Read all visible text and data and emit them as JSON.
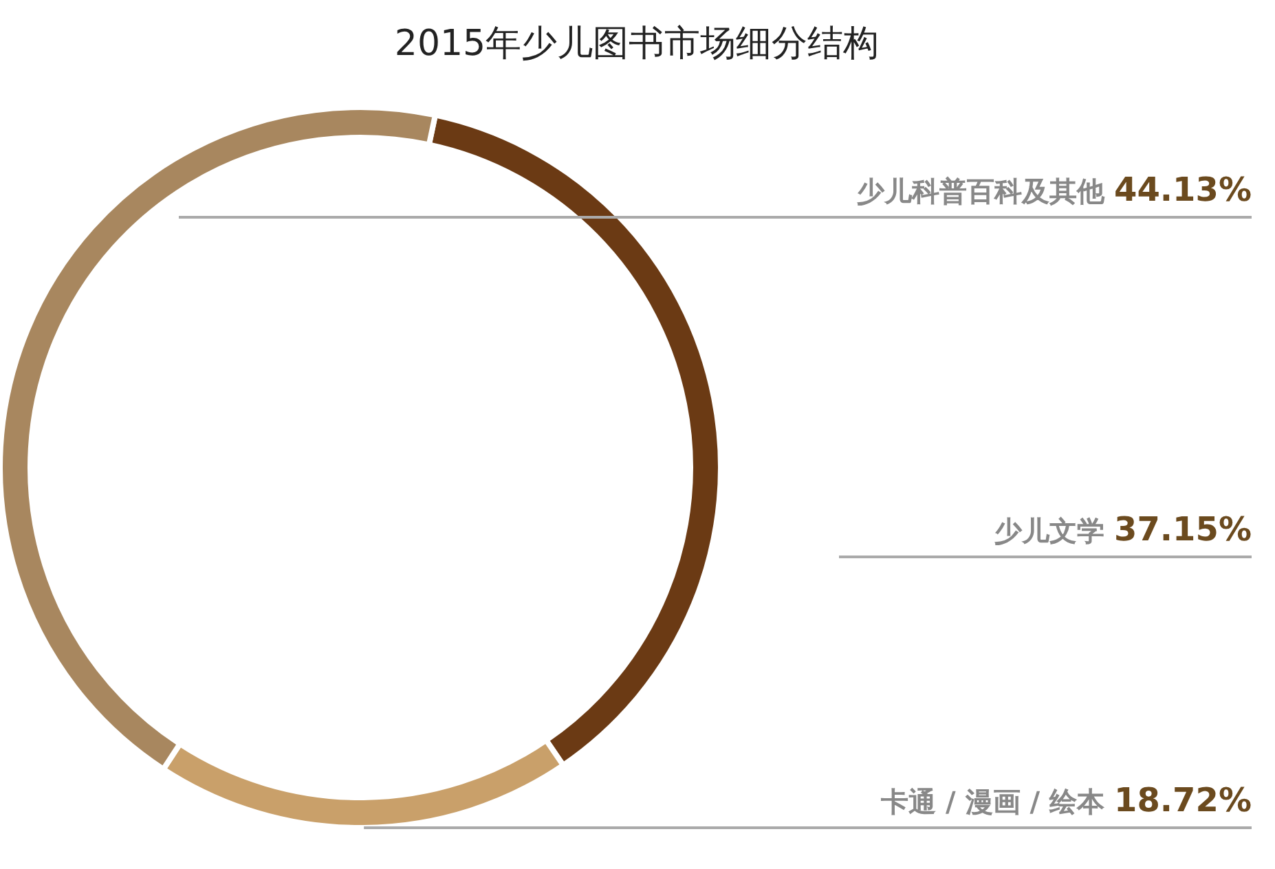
{
  "chart_data": {
    "type": "donut",
    "title": "2015年少儿图书市场细分结构",
    "categories": [
      "少儿文学",
      "卡通 / 漫画 / 绘本",
      "少儿科普百科及其他"
    ],
    "values": [
      37.15,
      18.72,
      44.13
    ],
    "value_labels": [
      "37.15%",
      "18.72%",
      "44.13%"
    ],
    "colors": [
      "#6b3a14",
      "#c9a06a",
      "#a8875f"
    ]
  }
}
